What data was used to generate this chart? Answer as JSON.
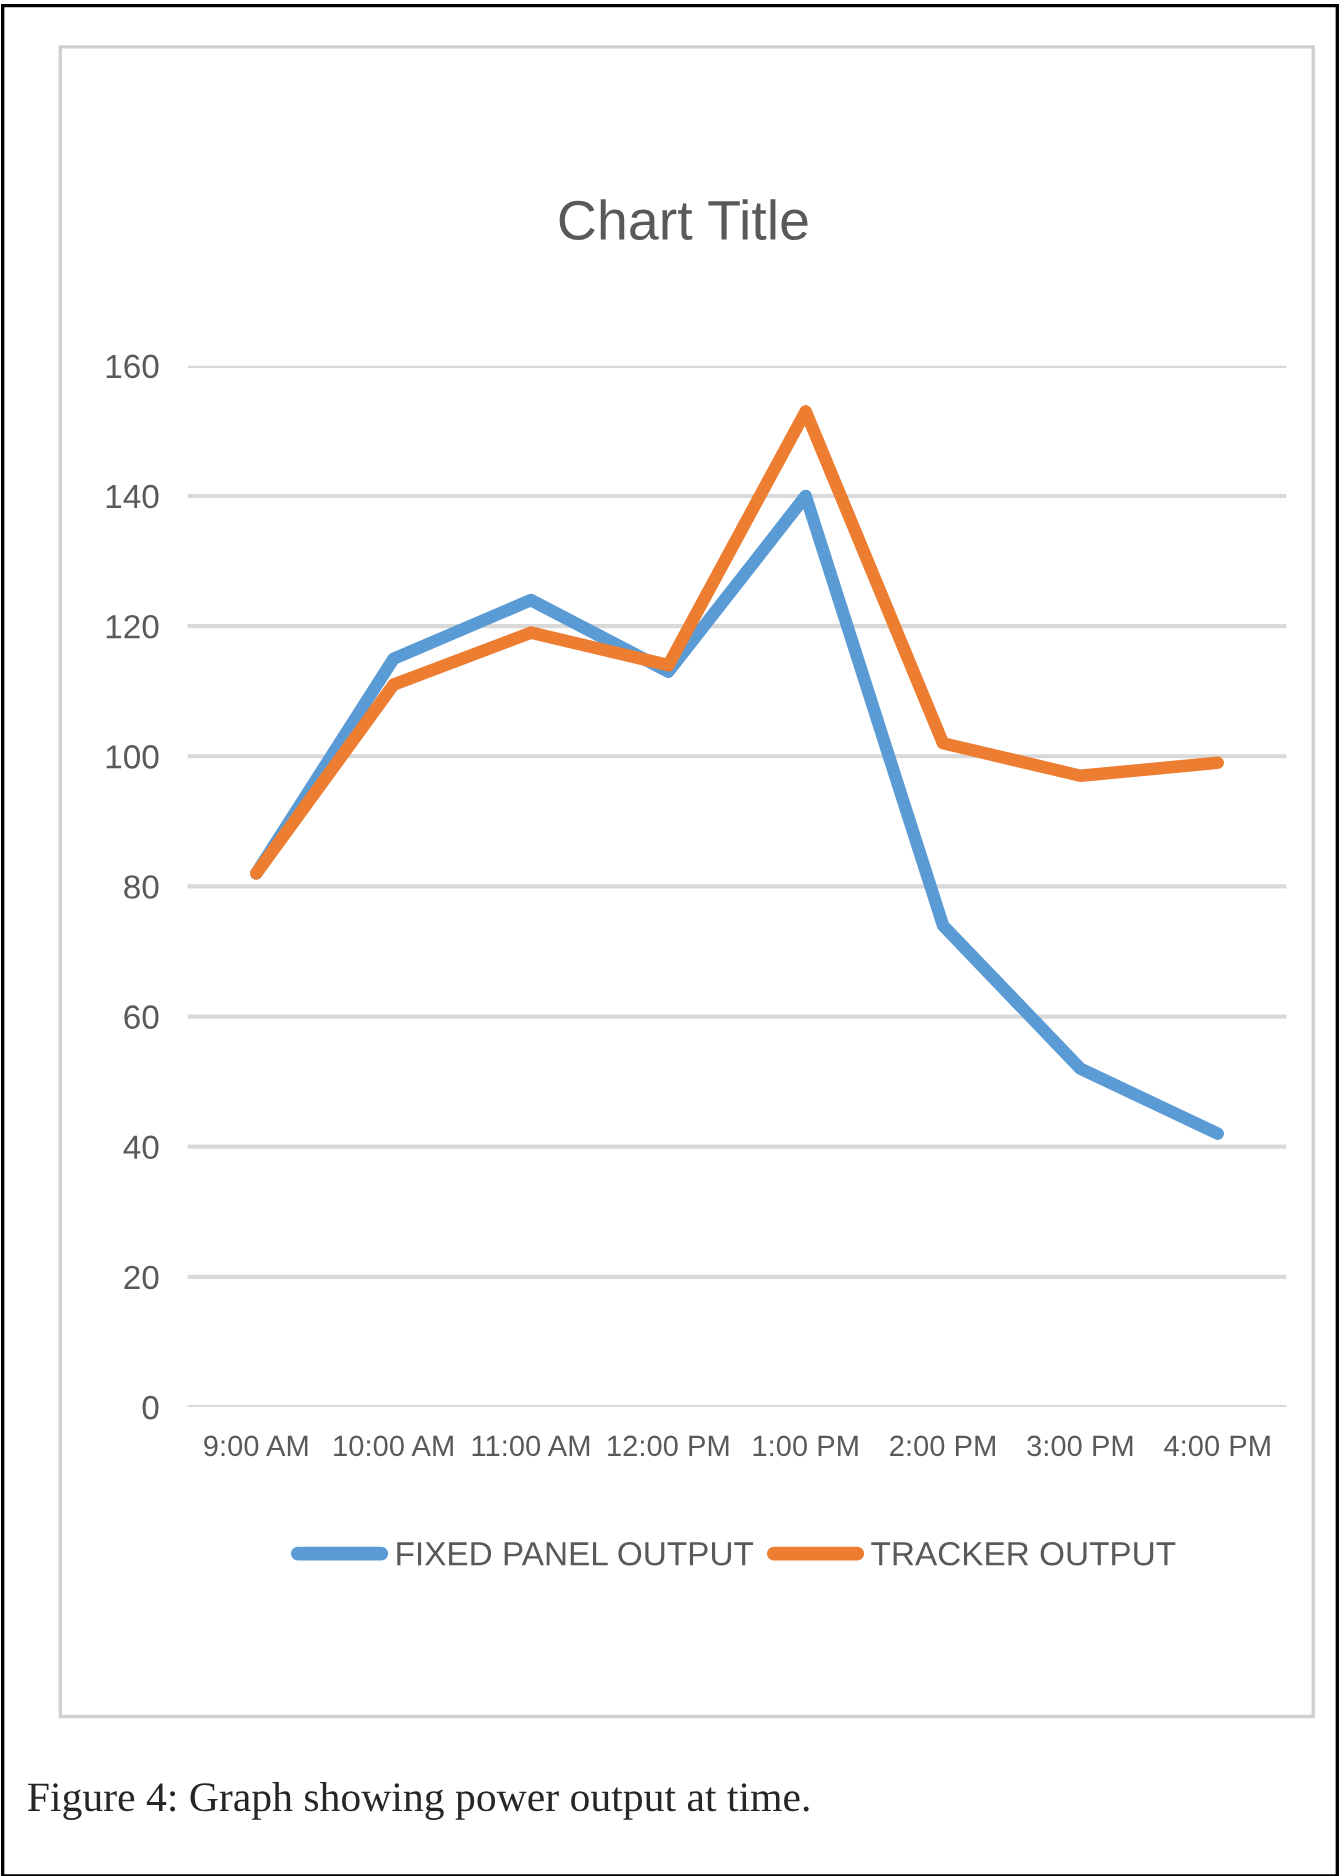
{
  "chart_data": {
    "type": "line",
    "title": "Chart Title",
    "categories": [
      "9:00 AM",
      "10:00 AM",
      "11:00 AM",
      "12:00 PM",
      "1:00 PM",
      "2:00 PM",
      "3:00 PM",
      "4:00 PM"
    ],
    "series": [
      {
        "name": "FIXED PANEL OUTPUT",
        "color": "#5b9bd5",
        "values": [
          82,
          115,
          124,
          113,
          140,
          74,
          52,
          42
        ]
      },
      {
        "name": "TRACKER OUTPUT",
        "color": "#ed7d31",
        "values": [
          82,
          111,
          119,
          114,
          153,
          102,
          97,
          99
        ]
      }
    ],
    "ylim": [
      0,
      160
    ],
    "yticks": [
      0,
      20,
      40,
      60,
      80,
      100,
      120,
      140,
      160
    ],
    "grid": "y",
    "legend": "bottom",
    "marker": "none",
    "line_style": "solid",
    "annotations": [
      "Figure 4: Graph showing power output at time."
    ]
  }
}
